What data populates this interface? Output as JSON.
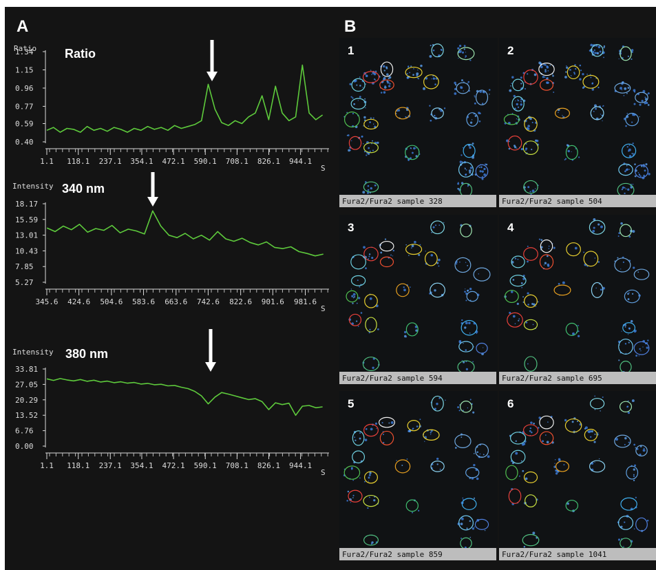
{
  "panels": {
    "a_label": "A",
    "b_label": "B"
  },
  "chart_data": [
    {
      "type": "line",
      "title": "Ratio",
      "y_label": "Ratio",
      "x_unit": "S",
      "color": "#5ecb3c",
      "x": [
        1,
        26,
        51,
        76,
        101,
        126,
        151,
        176,
        201,
        226,
        251,
        276,
        301,
        326,
        351,
        376,
        401,
        426,
        451,
        476,
        501,
        526,
        551,
        576,
        601,
        626,
        651,
        676,
        701,
        726,
        751,
        776,
        801,
        826,
        851,
        876,
        901,
        926,
        951,
        976,
        1001,
        1026
      ],
      "values": [
        0.52,
        0.55,
        0.5,
        0.54,
        0.53,
        0.5,
        0.56,
        0.52,
        0.54,
        0.51,
        0.55,
        0.53,
        0.5,
        0.54,
        0.52,
        0.56,
        0.53,
        0.55,
        0.52,
        0.57,
        0.54,
        0.56,
        0.58,
        0.62,
        1.0,
        0.74,
        0.6,
        0.57,
        0.62,
        0.59,
        0.66,
        0.7,
        0.88,
        0.63,
        0.98,
        0.7,
        0.62,
        0.66,
        1.2,
        0.7,
        0.63,
        0.68
      ],
      "xlim": [
        1.1,
        1050
      ],
      "ylim": [
        0.4,
        1.34
      ],
      "xticks": [
        1.1,
        118.1,
        237.1,
        354.1,
        472.1,
        590.1,
        708.1,
        826.1,
        944.1
      ],
      "yticks": [
        {
          "value": 0.4,
          "label": "0.40"
        },
        0.59,
        0.77,
        0.96,
        1.15,
        1.34
      ]
    },
    {
      "type": "line",
      "title": "340 nm",
      "y_label": "Intensity",
      "x_unit": "S",
      "color": "#5ecb3c",
      "x": [
        346,
        366,
        386,
        406,
        426,
        446,
        466,
        486,
        506,
        526,
        546,
        566,
        586,
        606,
        626,
        646,
        666,
        686,
        706,
        726,
        746,
        766,
        786,
        806,
        826,
        846,
        866,
        886,
        906,
        926,
        946,
        966,
        986,
        1006,
        1026
      ],
      "values": [
        14.2,
        13.6,
        14.5,
        13.9,
        14.8,
        13.5,
        14.1,
        13.8,
        14.6,
        13.4,
        14.0,
        13.7,
        13.2,
        17.0,
        14.5,
        13.0,
        12.6,
        13.3,
        12.4,
        13.0,
        12.2,
        13.6,
        12.4,
        12.0,
        12.5,
        11.8,
        11.4,
        11.9,
        11.0,
        10.8,
        11.1,
        10.3,
        10.0,
        9.6,
        9.9
      ],
      "xlim": [
        345.6,
        1040
      ],
      "ylim": [
        5.27,
        18.17
      ],
      "xticks": [
        345.6,
        424.6,
        504.6,
        583.6,
        663.6,
        742.6,
        822.6,
        901.6,
        981.6
      ],
      "yticks": [
        5.27,
        7.85,
        10.43,
        13.01,
        15.59,
        18.17
      ]
    },
    {
      "type": "line",
      "title": "380 nm",
      "y_label": "Intensity",
      "x_unit": "S",
      "color": "#5ecb3c",
      "x": [
        1,
        26,
        51,
        76,
        101,
        126,
        151,
        176,
        201,
        226,
        251,
        276,
        301,
        326,
        351,
        376,
        401,
        426,
        451,
        476,
        501,
        526,
        551,
        576,
        601,
        626,
        651,
        676,
        701,
        726,
        751,
        776,
        801,
        826,
        851,
        876,
        901,
        926,
        951,
        976,
        1001,
        1026
      ],
      "values": [
        29.5,
        28.8,
        29.6,
        29.0,
        28.6,
        29.2,
        28.4,
        28.9,
        28.1,
        28.5,
        27.8,
        28.2,
        27.6,
        27.9,
        27.2,
        27.5,
        26.9,
        27.1,
        26.4,
        26.6,
        25.8,
        25.2,
        24.0,
        22.0,
        18.5,
        21.5,
        23.5,
        22.8,
        22.0,
        21.2,
        20.4,
        20.8,
        19.5,
        16.0,
        19.0,
        18.2,
        18.8,
        13.5,
        17.5,
        17.8,
        16.8,
        17.2
      ],
      "xlim": [
        1.1,
        1050
      ],
      "ylim": [
        0,
        33.81
      ],
      "xticks": [
        1.1,
        118.1,
        237.1,
        354.1,
        472.1,
        590.1,
        708.1,
        826.1,
        944.1
      ],
      "yticks": [
        {
          "value": 0,
          "label": "0.00"
        },
        6.76,
        13.52,
        20.29,
        27.05,
        33.81
      ]
    }
  ],
  "images": [
    {
      "number": "1",
      "caption": "Fura2/Fura2 sample 328"
    },
    {
      "number": "2",
      "caption": "Fura2/Fura2 sample 504"
    },
    {
      "number": "3",
      "caption": "Fura2/Fura2 sample 594"
    },
    {
      "number": "4",
      "caption": "Fura2/Fura2 sample 695"
    },
    {
      "number": "5",
      "caption": "Fura2/Fura2 sample 859"
    },
    {
      "number": "6",
      "caption": "Fura2/Fura2 sample 1041"
    }
  ]
}
